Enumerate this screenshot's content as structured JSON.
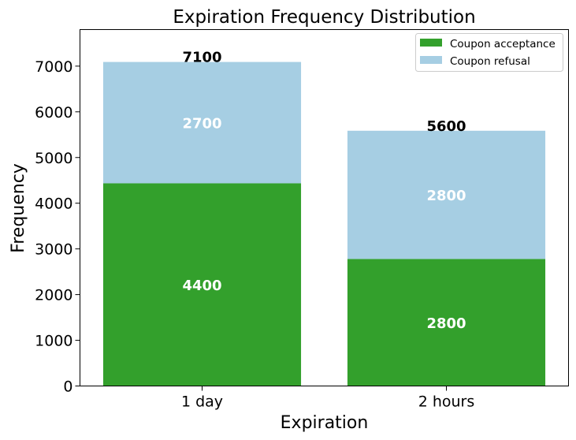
{
  "chart_data": {
    "type": "bar",
    "stacked": true,
    "title": "Expiration Frequency Distribution",
    "xlabel": "Expiration",
    "ylabel": "Frequency",
    "categories": [
      "1 day",
      "2 hours"
    ],
    "series": [
      {
        "name": "Coupon acceptance",
        "values": [
          4436,
          2780
        ],
        "labels": [
          "4400",
          "2800"
        ],
        "color": "#33a02c"
      },
      {
        "name": "Coupon refusal",
        "values": [
          2655,
          2806
        ],
        "labels": [
          "2700",
          "2800"
        ],
        "color": "#a6cee3"
      }
    ],
    "totals": [
      "7100",
      "5600"
    ],
    "ylim": [
      0,
      7800
    ],
    "yticks": [
      0,
      1000,
      2000,
      3000,
      4000,
      5000,
      6000,
      7000
    ],
    "ytick_labels": [
      "0",
      "1000",
      "2000",
      "3000",
      "4000",
      "5000",
      "6000",
      "7000"
    ],
    "grid": false,
    "legend_position": "top-right"
  }
}
